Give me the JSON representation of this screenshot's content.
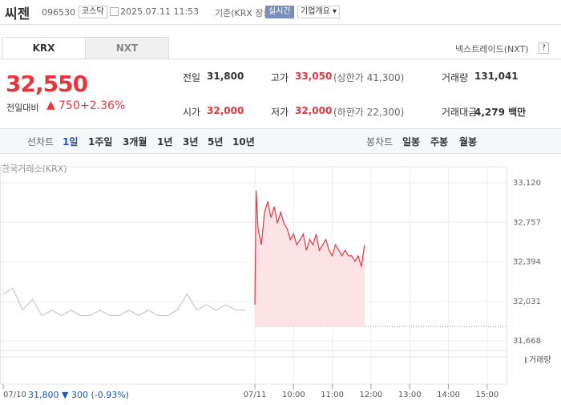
{
  "header": {
    "name": "씨젠",
    "code": "096530",
    "market": "코스닥",
    "datetime": "2025.07.11 11:53",
    "basis": "기준(KRX 장중)",
    "realtime": "실시간",
    "company": "기업개요"
  },
  "tabs": [
    "KRX",
    "NXT"
  ],
  "nxt_link": "넥스트레이드(NXT)",
  "help": "?",
  "price": {
    "current": "32,550",
    "change_label": "전일대비",
    "arrow": "▲",
    "change": "750",
    "percent": "+2.36%"
  },
  "stats": [
    {
      "label": "전일",
      "value": "31,800"
    },
    {
      "label": "고가",
      "value": "33,050",
      "extra": "(상한가 41,300)"
    },
    {
      "label": "거래량",
      "value": "131,041"
    },
    {
      "label": "시가",
      "value": "32,000"
    },
    {
      "label": "저가",
      "value": "32,000",
      "extra": "(하한가 22,300)"
    },
    {
      "label": "거래대금",
      "value": "4,279 백만"
    }
  ],
  "periods": {
    "label": "선차트",
    "items": [
      "1일",
      "1주일",
      "3개월",
      "1년",
      "3년",
      "5년",
      "10년"
    ]
  },
  "candles": {
    "label": "봉차트",
    "items": [
      "일봉",
      "주봉",
      "월봉"
    ]
  },
  "chart_data": {
    "type": "line",
    "source": "한국거래소(KRX)",
    "ylim": [
      31668,
      33120
    ],
    "yticks": [
      {
        "value": 33120,
        "label": "33,120"
      },
      {
        "value": 32757,
        "label": "32,757"
      },
      {
        "value": 32394,
        "label": "32,394"
      },
      {
        "value": 32031,
        "label": "32,031"
      },
      {
        "value": 31668,
        "label": "31,668"
      }
    ],
    "xlim": [
      -395,
      390
    ],
    "xticks": [
      {
        "value": -390,
        "label": "07/10"
      },
      {
        "value": 0,
        "label": "07/11"
      },
      {
        "value": 60,
        "label": "10:00"
      },
      {
        "value": 120,
        "label": "11:00"
      },
      {
        "value": 180,
        "label": "12:00"
      },
      {
        "value": 240,
        "label": "13:00"
      },
      {
        "value": 300,
        "label": "14:00"
      },
      {
        "value": 360,
        "label": "15:00"
      }
    ],
    "base": 31800,
    "series": [
      {
        "color": "#c8c8c8",
        "x": [
          -390,
          -375,
          -360,
          -345,
          -330,
          -315,
          -300,
          -285,
          -270,
          -255,
          -240,
          -225,
          -210,
          -195,
          -180,
          -165,
          -150,
          -135,
          -120,
          -105,
          -90,
          -75,
          -60,
          -45,
          -30,
          -15
        ],
        "values": [
          32100,
          32150,
          31950,
          32050,
          31900,
          31950,
          31900,
          31950,
          31900,
          31900,
          31950,
          31900,
          31900,
          31950,
          31900,
          31950,
          31900,
          31900,
          31950,
          32100,
          31950,
          32000,
          31950,
          32000,
          31950,
          31950
        ]
      },
      {
        "color": "#e8343d",
        "fill": "#fde3e5",
        "x": [
          0,
          2,
          5,
          10,
          15,
          20,
          25,
          30,
          35,
          40,
          45,
          50,
          55,
          60,
          65,
          70,
          75,
          80,
          85,
          90,
          95,
          100,
          105,
          110,
          115,
          120,
          125,
          130,
          135,
          140,
          145,
          150,
          155,
          160,
          165,
          170
        ],
        "values": [
          32000,
          33050,
          32700,
          32550,
          32850,
          32950,
          32800,
          32900,
          32750,
          32850,
          32750,
          32700,
          32600,
          32650,
          32550,
          32600,
          32650,
          32500,
          32600,
          32550,
          32650,
          32500,
          32550,
          32600,
          32500,
          32450,
          32550,
          32500,
          32450,
          32500,
          32450,
          32450,
          32400,
          32450,
          32350,
          32550
        ]
      }
    ],
    "volume_label": "거래량"
  },
  "footer": {
    "prev_close": "31,800",
    "change": "▼ 300",
    "percent": "(-0.93%)"
  }
}
